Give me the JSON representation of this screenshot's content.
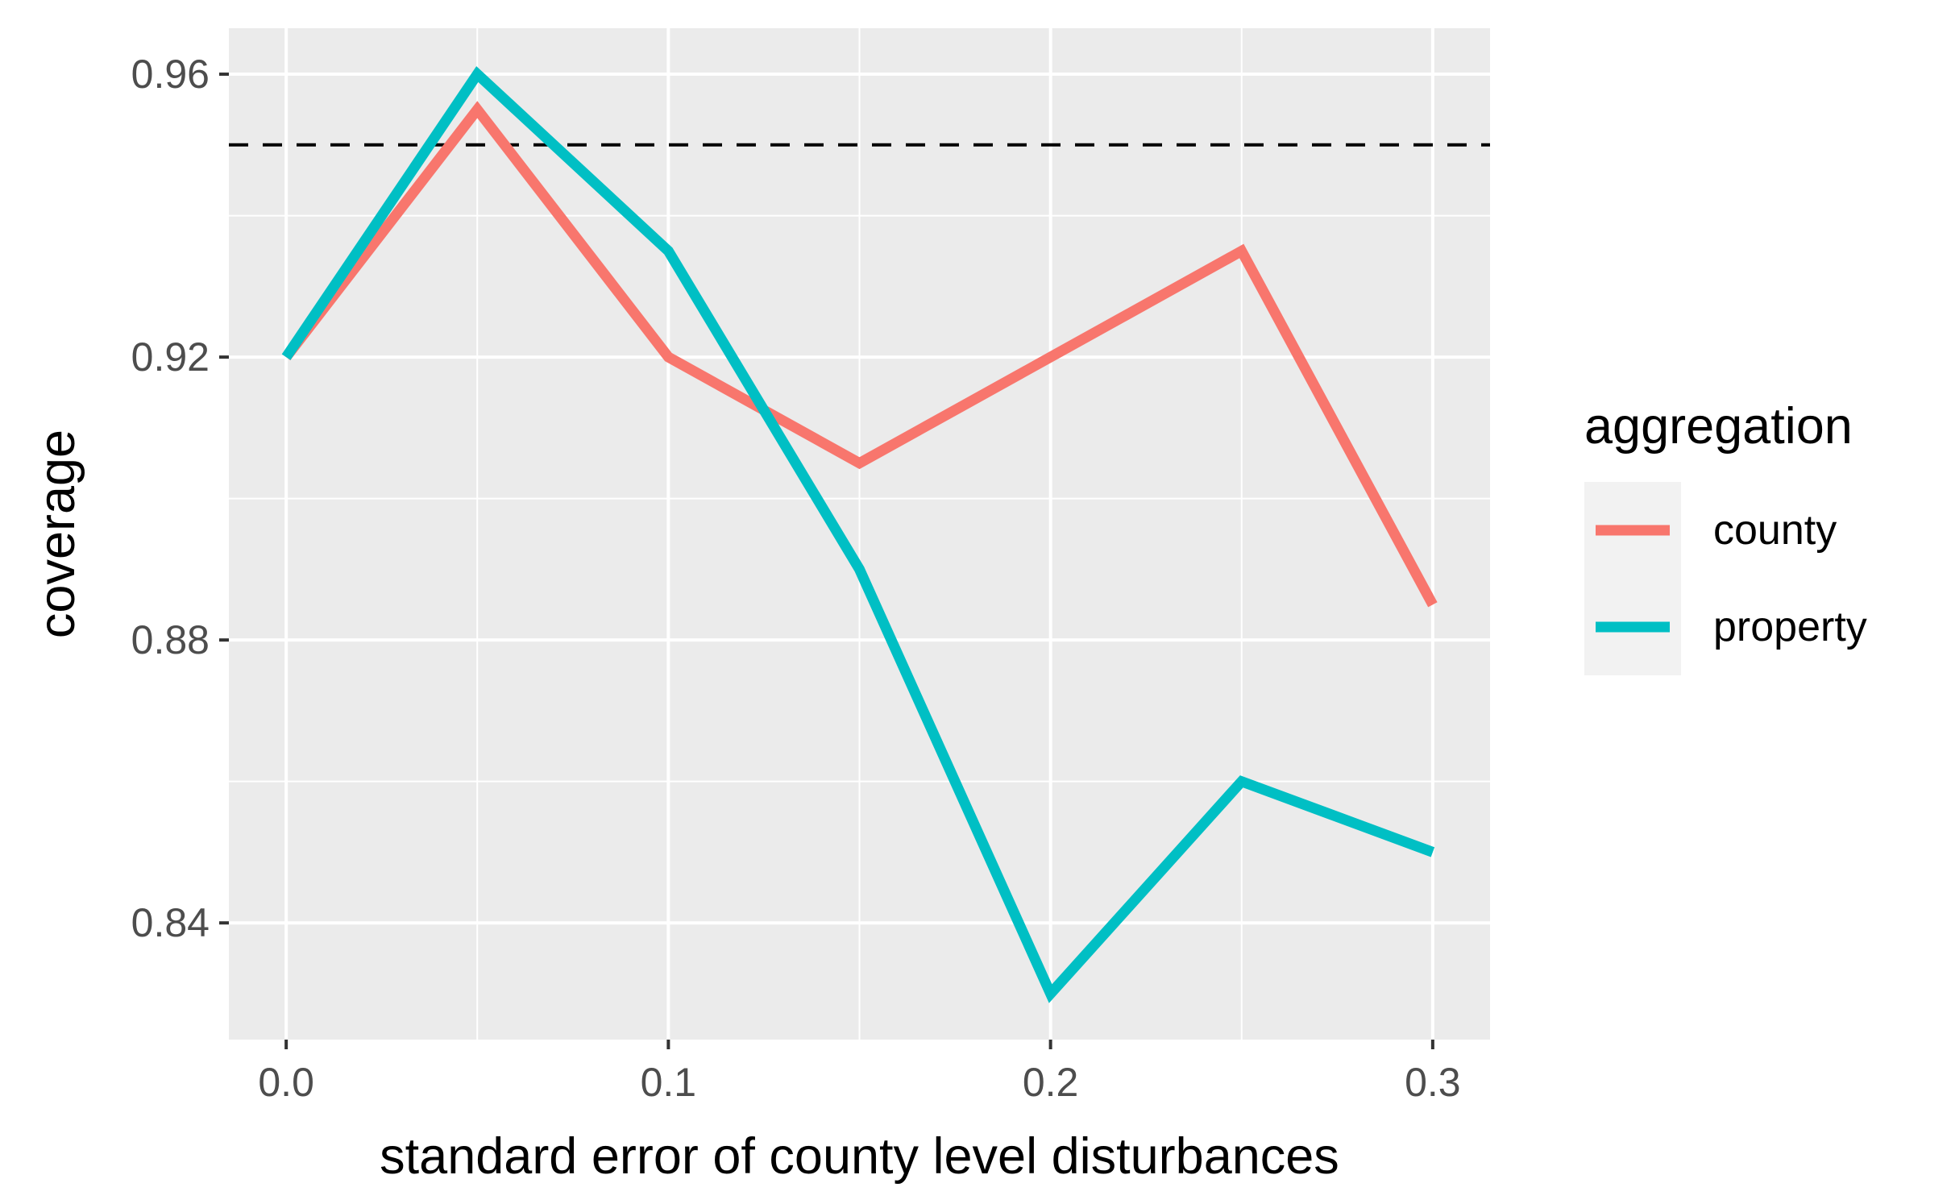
{
  "chart_data": {
    "type": "line",
    "title": "",
    "xlabel": "standard error of county level disturbances",
    "ylabel": "coverage",
    "x": [
      0.0,
      0.05,
      0.1,
      0.15,
      0.2,
      0.25,
      0.3
    ],
    "xlim": [
      -0.015,
      0.315
    ],
    "ylim": [
      0.8235,
      0.9665
    ],
    "x_ticks": [
      0.0,
      0.1,
      0.2,
      0.3
    ],
    "x_tick_labels": [
      "0.0",
      "0.1",
      "0.2",
      "0.3"
    ],
    "y_ticks": [
      0.84,
      0.88,
      0.92,
      0.96
    ],
    "y_tick_labels": [
      "0.84",
      "0.88",
      "0.92",
      "0.96"
    ],
    "grid": true,
    "reference_line": {
      "y": 0.95,
      "style": "dashed",
      "color": "#000000"
    },
    "legend": {
      "title": "aggregation",
      "position": "right"
    },
    "series": [
      {
        "name": "county",
        "color": "#F8766D",
        "values": [
          0.92,
          0.955,
          0.92,
          0.905,
          0.92,
          0.935,
          0.885
        ]
      },
      {
        "name": "property",
        "color": "#00BFC4",
        "values": [
          0.92,
          0.96,
          0.935,
          0.89,
          0.83,
          0.86,
          0.85
        ]
      }
    ]
  }
}
